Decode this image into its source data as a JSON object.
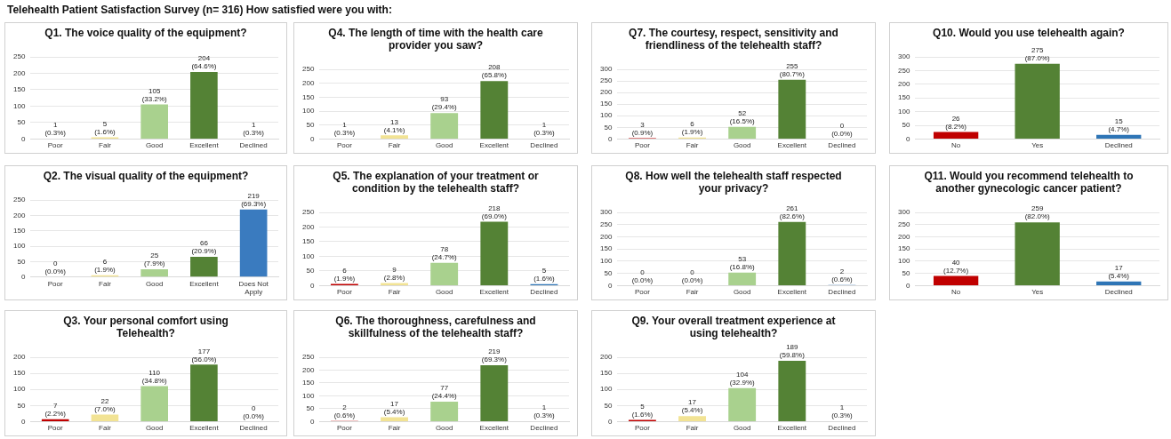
{
  "chart_data": [
    {
      "type": "other",
      "title": "Telehealth Patient Satisfaction Survey (n= 316) How satisfied were you with:"
    },
    {
      "type": "bar",
      "title": "Q1. The voice quality of the equipment?",
      "categories": [
        "Poor",
        "Fair",
        "Good",
        "Excellent",
        "Declined"
      ],
      "values": [
        1,
        5,
        105,
        204,
        1
      ],
      "colors": [
        "#c00000",
        "#f2e394",
        "#a9d18e",
        "#548235",
        "#2e75b6"
      ],
      "ylim": [
        0,
        250
      ],
      "yticks": [
        0,
        50,
        100,
        150,
        200,
        250
      ],
      "grid": "y",
      "value_labels": [
        "1 (0.3%)",
        "5 (1.6%)",
        "105 (33.2%)",
        "204 (64.6%)",
        "1 (0.3%)"
      ]
    },
    {
      "type": "bar",
      "title": "Q4. The length of time with the health care provider you saw?",
      "categories": [
        "Poor",
        "Fair",
        "Good",
        "Excellent",
        "Declined"
      ],
      "values": [
        1,
        13,
        93,
        208,
        1
      ],
      "colors": [
        "#c00000",
        "#f2e394",
        "#a9d18e",
        "#548235",
        "#2e75b6"
      ],
      "ylim": [
        0,
        250
      ],
      "yticks": [
        0,
        50,
        100,
        150,
        200,
        250
      ],
      "grid": "y",
      "value_labels": [
        "1 (0.3%)",
        "13 (4.1%)",
        "93 (29.4%)",
        "208 (65.8%)",
        "1 (0.3%)"
      ]
    },
    {
      "type": "bar",
      "title": "Q7. The courtesy, respect, sensitivity and friendliness of the telehealth staff?",
      "categories": [
        "Poor",
        "Fair",
        "Good",
        "Excellent",
        "Declined"
      ],
      "values": [
        3,
        6,
        52,
        255,
        0
      ],
      "colors": [
        "#c00000",
        "#f2e394",
        "#a9d18e",
        "#548235",
        "#2e75b6"
      ],
      "ylim": [
        0,
        300
      ],
      "yticks": [
        0,
        50,
        100,
        150,
        200,
        250,
        300
      ],
      "grid": "y",
      "value_labels": [
        "3 (0.9%)",
        "6 (1.9%)",
        "52 (16.5%)",
        "255 (80.7%)",
        "0 (0.0%)"
      ]
    },
    {
      "type": "bar",
      "title": "Q10. Would you use telehealth again?",
      "categories": [
        "No",
        "Yes",
        "Declined"
      ],
      "values": [
        26,
        275,
        15
      ],
      "colors": [
        "#c00000",
        "#548235",
        "#2e75b6"
      ],
      "ylim": [
        0,
        300
      ],
      "yticks": [
        0,
        50,
        100,
        150,
        200,
        250,
        300
      ],
      "grid": "y",
      "value_labels": [
        "26 (8.2%)",
        "275 (87.0%)",
        "15 (4.7%)"
      ]
    },
    {
      "type": "bar",
      "title": "Q2. The visual quality of the equipment?",
      "categories": [
        "Poor",
        "Fair",
        "Good",
        "Excellent",
        "Does Not Apply"
      ],
      "values": [
        0,
        6,
        25,
        66,
        219
      ],
      "colors": [
        "#c00000",
        "#f2e394",
        "#a9d18e",
        "#548235",
        "#3a7bbf"
      ],
      "ylim": [
        0,
        250
      ],
      "yticks": [
        0,
        50,
        100,
        150,
        200,
        250
      ],
      "grid": "y",
      "value_labels": [
        "0 (0.0%)",
        "6 (1.9%)",
        "25 (7.9%)",
        "66 (20.9%)",
        "219 (69.3%)"
      ]
    },
    {
      "type": "bar",
      "title": "Q5. The explanation of your treatment or condition by the telehealth staff?",
      "categories": [
        "Poor",
        "Fair",
        "Good",
        "Excellent",
        "Declined"
      ],
      "values": [
        6,
        9,
        78,
        218,
        5
      ],
      "colors": [
        "#c00000",
        "#f2e394",
        "#a9d18e",
        "#548235",
        "#2e75b6"
      ],
      "ylim": [
        0,
        250
      ],
      "yticks": [
        0,
        50,
        100,
        150,
        200,
        250
      ],
      "grid": "y",
      "value_labels": [
        "6 (1.9%)",
        "9 (2.8%)",
        "78 (24.7%)",
        "218 (69.0%)",
        "5 (1.6%)"
      ]
    },
    {
      "type": "bar",
      "title": "Q8. How well the telehealth staff respected your privacy?",
      "categories": [
        "Poor",
        "Fair",
        "Good",
        "Excellent",
        "Declined"
      ],
      "values": [
        0,
        0,
        53,
        261,
        2
      ],
      "colors": [
        "#c00000",
        "#f2e394",
        "#a9d18e",
        "#548235",
        "#2e75b6"
      ],
      "ylim": [
        0,
        300
      ],
      "yticks": [
        0,
        50,
        100,
        150,
        200,
        250,
        300
      ],
      "grid": "y",
      "value_labels": [
        "0 (0.0%)",
        "0 (0.0%)",
        "53 (16.8%)",
        "261 (82.6%)",
        "2 (0.6%)"
      ]
    },
    {
      "type": "bar",
      "title": "Q11. Would you recommend telehealth to another gynecologic cancer patient?",
      "categories": [
        "No",
        "Yes",
        "Declined"
      ],
      "values": [
        40,
        259,
        17
      ],
      "colors": [
        "#c00000",
        "#548235",
        "#2e75b6"
      ],
      "ylim": [
        0,
        300
      ],
      "yticks": [
        0,
        50,
        100,
        150,
        200,
        250,
        300
      ],
      "grid": "y",
      "value_labels": [
        "40 (12.7%)",
        "259 (82.0%)",
        "17 (5.4%)"
      ]
    },
    {
      "type": "bar",
      "title": "Q3. Your personal comfort using Telehealth?",
      "categories": [
        "Poor",
        "Fair",
        "Good",
        "Excellent",
        "Declined"
      ],
      "values": [
        7,
        22,
        110,
        177,
        0
      ],
      "colors": [
        "#c00000",
        "#f2e394",
        "#a9d18e",
        "#548235",
        "#2e75b6"
      ],
      "ylim": [
        0,
        200
      ],
      "yticks": [
        0,
        50,
        100,
        150,
        200
      ],
      "grid": "y",
      "value_labels": [
        "7 (2.2%)",
        "22 (7.0%)",
        "110 (34.8%)",
        "177 (56.0%)",
        "0 (0.0%)"
      ]
    },
    {
      "type": "bar",
      "title": "Q6. The thoroughness, carefulness and skillfulness of the telehealth staff?",
      "categories": [
        "Poor",
        "Fair",
        "Good",
        "Excellent",
        "Declined"
      ],
      "values": [
        2,
        17,
        77,
        219,
        1
      ],
      "colors": [
        "#c00000",
        "#f2e394",
        "#a9d18e",
        "#548235",
        "#2e75b6"
      ],
      "ylim": [
        0,
        250
      ],
      "yticks": [
        0,
        50,
        100,
        150,
        200,
        250
      ],
      "grid": "y",
      "value_labels": [
        "2 (0.6%)",
        "17 (5.4%)",
        "77 (24.4%)",
        "219 (69.3%)",
        "1 (0.3%)"
      ]
    },
    {
      "type": "bar",
      "title": "Q9. Your overall treatment experience at using telehealth?",
      "categories": [
        "Poor",
        "Fair",
        "Good",
        "Excellent",
        "Declined"
      ],
      "values": [
        5,
        17,
        104,
        189,
        1
      ],
      "colors": [
        "#c00000",
        "#f2e394",
        "#a9d18e",
        "#548235",
        "#2e75b6"
      ],
      "ylim": [
        0,
        200
      ],
      "yticks": [
        0,
        50,
        100,
        150,
        200
      ],
      "grid": "y",
      "value_labels": [
        "5 (1.6%)",
        "17 (5.4%)",
        "104 (32.9%)",
        "189 (59.8%)",
        "1 (0.3%)"
      ]
    }
  ]
}
